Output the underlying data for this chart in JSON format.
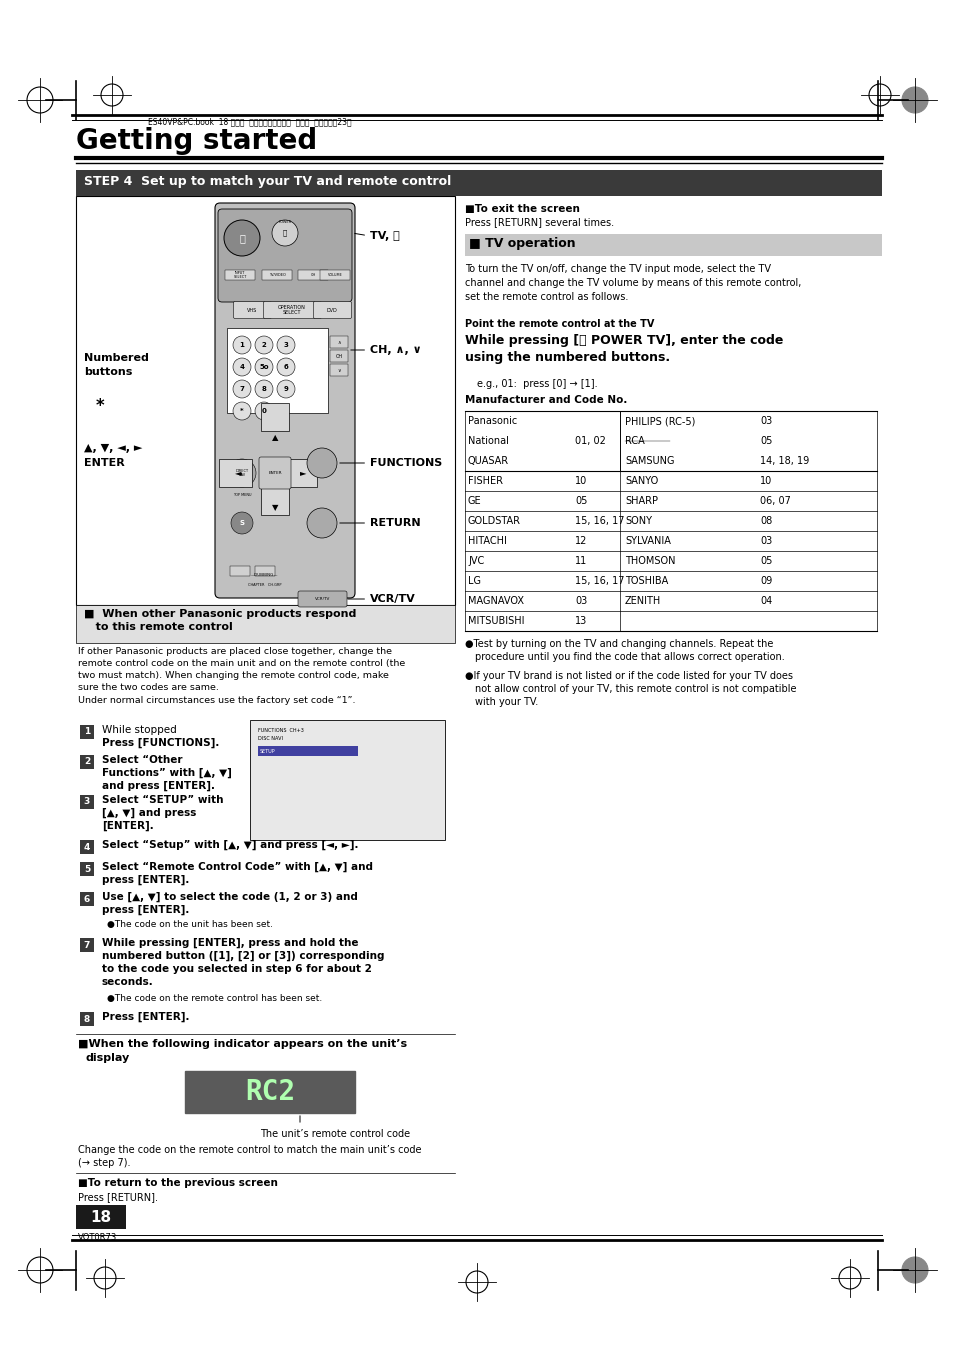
{
  "bg_color": "#ffffff",
  "page_width": 9.54,
  "page_height": 13.51,
  "dpi": 100,
  "title": "Getting started",
  "step_header": "STEP 4  Set up to match your TV and remote control",
  "tv_op_header": "■ TV operation",
  "exit_screen_bold": "■To exit the screen",
  "exit_screen_text": "Press [RETURN] several times.",
  "tv_op_desc": "To turn the TV on/off, change the TV input mode, select the TV\nchannel and change the TV volume by means of this remote control,\nset the remote control as follows.",
  "point_remote": "Point the remote control at the TV",
  "while_pressing_bold": "While pressing [⏻ POWER TV], enter the code\nusing the numbered buttons.",
  "eg_text": "e.g., 01:  press [0] → [1].",
  "mfr_header": "Manufacturer and Code No.",
  "other_pan_header": "■  When other Panasonic products respond\n   to this remote control",
  "other_pan_text": "If other Panasonic products are placed close together, change the\nremote control code on the main unit and on the remote control (the\ntwo must match). When changing the remote control code, make\nsure the two codes are same.\nUnder normal circumstances use the factory set code “1”.",
  "steps": [
    {
      "num": "1",
      "text1": "While stopped",
      "text2": "Press [FUNCTIONS]."
    },
    {
      "num": "2",
      "text1": "Select “Other",
      "text2": "Functions” with [▲, ▼]",
      "text3": "and press [ENTER]."
    },
    {
      "num": "3",
      "text1": "Select “SETUP” with",
      "text2": "[▲, ▼] and press",
      "text3": "[ENTER]."
    },
    {
      "num": "4",
      "text1": "Select “Setup” with [▲, ▼] and press [◄, ►]."
    },
    {
      "num": "5",
      "text1": "Select “Remote Control Code” with [▲, ▼] and",
      "text2": "press [ENTER]."
    },
    {
      "num": "6",
      "text1": "Use [▲, ▼] to select the code (1, 2 or 3) and",
      "text2": "press [ENTER].",
      "bullet": "●The code on the unit has been set."
    },
    {
      "num": "7",
      "text1": "While pressing [ENTER], press and hold the",
      "text2": "numbered button ([1], [2] or [3]) corresponding",
      "text3": "to the code you selected in step 6 for about 2",
      "text4": "seconds.",
      "bullet": "●The code on the remote control has been set."
    },
    {
      "num": "8",
      "text1": "Press [ENTER]."
    }
  ],
  "when_display_text": "■When the following indicator appears on the unit’s",
  "when_display_text2": "display",
  "rc2_label": "The unit’s remote control code",
  "change_code_text": "Change the code on the remote control to match the main unit’s code",
  "change_code_text2": "(→ step 7).",
  "return_prev": "■To return to the previous screen",
  "return_press": "Press [RETURN].",
  "page_num": "18",
  "vqt_code": "VQT0R73",
  "bullet_test1a": "●Test by turning on the TV and changing channels. Repeat the",
  "bullet_test1b": "procedure until you find the code that allows correct operation.",
  "bullet_test2a": "●If your TV brand is not listed or if the code listed for your TV does",
  "bullet_test2b": "not allow control of your TV, this remote control is not compatible",
  "bullet_test2c": "with your TV.",
  "tv_power_label": "TV, ⏻",
  "ch_label": "CH, ∧, ∨",
  "functions_label": "FUNCTIONS",
  "enter_label_line1": "▲, ▼, ◄, ►",
  "enter_label_line2": "ENTER",
  "return_label": "RETURN",
  "vcrtv_label": "VCR/TV",
  "numbered_label_line1": "Numbered",
  "numbered_label_line2": "buttons",
  "star_label": "*",
  "header_text": "ES40VP&PC.book  18 ページ  ２００５年９月６日  火曜日  午前１０時23分",
  "group_rows": [
    [
      "Panasonic",
      "",
      "PHILIPS (RC-5)",
      "03"
    ],
    [
      "National",
      "01, 02",
      "RCA",
      "05"
    ],
    [
      "QUASAR",
      "",
      "SAMSUNG",
      "14, 18, 19"
    ],
    [
      "FISHER",
      "10",
      "SANYO",
      "10"
    ],
    [
      "GE",
      "05",
      "SHARP",
      "06, 07"
    ],
    [
      "GOLDSTAR",
      "15, 16, 17",
      "SONY",
      "08"
    ],
    [
      "HITACHI",
      "12",
      "SYLVANIA",
      "03"
    ],
    [
      "JVC",
      "11",
      "THOMSON",
      "05"
    ],
    [
      "LG",
      "15, 16, 17",
      "TOSHIBA",
      "09"
    ],
    [
      "MAGNAVOX",
      "03",
      "ZENITH",
      "04"
    ],
    [
      "MITSUBISHI",
      "13",
      "",
      ""
    ]
  ]
}
